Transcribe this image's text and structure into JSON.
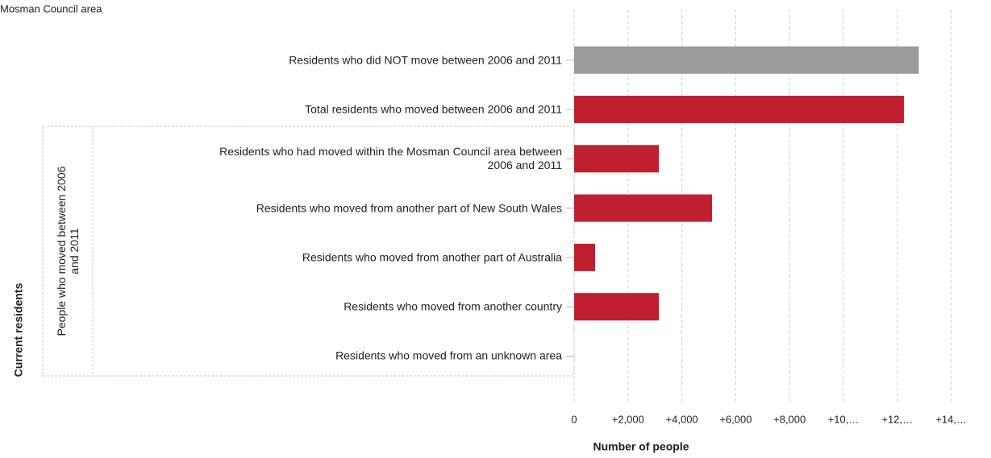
{
  "chart_data": {
    "type": "bar",
    "title": "Mosman Council area",
    "y_label": "Current residents",
    "group_label": "People who moved between 2006 and 2011",
    "x_label": "Number of people",
    "categories": [
      "Residents who did NOT move between 2006 and 2011",
      "Total residents who moved between 2006 and 2011",
      "Residents who had moved within the Mosman Council area between 2006 and 2011",
      "Residents who moved from another part of New South Wales",
      "Residents who moved from another part of Australia",
      "Residents who moved from another country",
      "Residents who moved from an unknown area"
    ],
    "values": [
      12800,
      12250,
      3150,
      5120,
      780,
      3150,
      0
    ],
    "colors": [
      "#9b9b9b",
      "#c01f2f",
      "#c01f2f",
      "#c01f2f",
      "#c01f2f",
      "#c01f2f",
      "#c01f2f"
    ],
    "xlim": [
      0,
      15000
    ],
    "xticks": [
      0,
      {
        "value": 2000,
        "label": "+2,000"
      },
      {
        "value": 4000,
        "label": "+4,000"
      },
      {
        "value": 6000,
        "label": "+6,000"
      },
      {
        "value": 8000,
        "label": "+8,000"
      },
      {
        "value": 10000,
        "label": "+10,…"
      },
      {
        "value": 12000,
        "label": "+12,…"
      },
      {
        "value": 14000,
        "label": "+14,…"
      }
    ],
    "grid": true
  }
}
